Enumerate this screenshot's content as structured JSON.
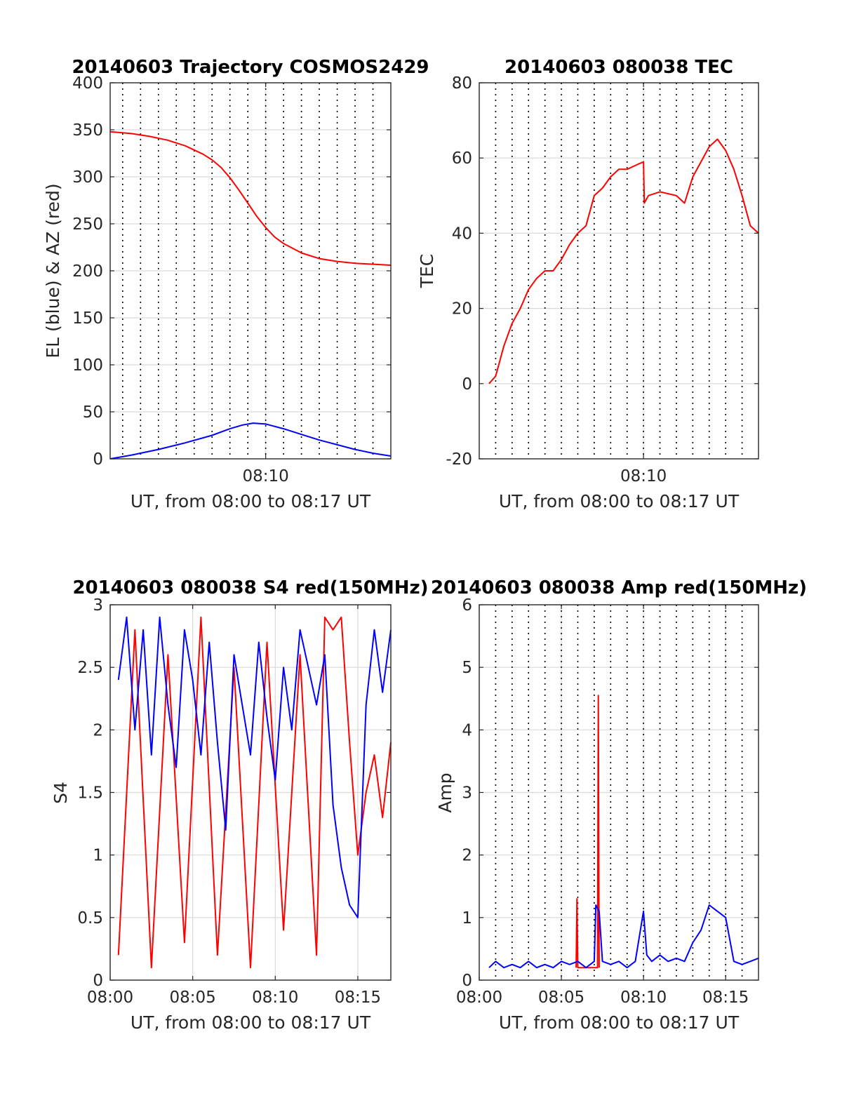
{
  "colors": {
    "el": "#0000ff",
    "az": "#ff0000",
    "tec": "#ff0000",
    "s4_red": "#ff0000",
    "s4_blue": "#0000ff",
    "amp_red": "#ff0000",
    "amp_blue": "#0000ff",
    "grid": "#d9d9d9",
    "vline": "#000000"
  },
  "chart_data": [
    {
      "id": "trajectory",
      "type": "line",
      "title": "20140603 Trajectory COSMOS2429",
      "xlabel": "UT, from 08:00 to 08:17 UT",
      "ylabel": "EL (blue) & AZ (red)",
      "xlim": [
        1.3,
        17.0
      ],
      "ylim": [
        0,
        400
      ],
      "yticks": [
        0,
        50,
        100,
        150,
        200,
        250,
        300,
        350,
        400
      ],
      "ytick_labels": [
        "0",
        "50",
        "100",
        "150",
        "200",
        "250",
        "300",
        "350",
        "400"
      ],
      "xticks": [
        10
      ],
      "xtick_labels": [
        "08:10"
      ],
      "vlines_minutes": [
        2,
        3,
        4,
        5,
        6,
        7,
        8,
        9,
        10,
        11,
        12,
        13,
        14,
        15,
        16
      ],
      "series": [
        {
          "color": "az",
          "x": [
            1.3,
            2.5,
            3.5,
            4.5,
            5.5,
            6.5,
            7.0,
            7.5,
            8.0,
            8.5,
            9.0,
            9.5,
            10.0,
            10.5,
            11.0,
            11.5,
            12.0,
            13.0,
            14.0,
            15.0,
            16.0,
            17.0
          ],
          "y": [
            348,
            346,
            343,
            339,
            333,
            324,
            318,
            310,
            299,
            286,
            272,
            258,
            246,
            236,
            229,
            224,
            219,
            213,
            210,
            208,
            207,
            206
          ]
        },
        {
          "color": "el",
          "x": [
            1.3,
            2.5,
            4.0,
            5.5,
            7.0,
            8.0,
            8.7,
            9.3,
            10.0,
            11.0,
            12.0,
            13.0,
            14.0,
            15.0,
            16.0,
            17.0
          ],
          "y": [
            0,
            4,
            10,
            17,
            25,
            32,
            36,
            38,
            37,
            32,
            26,
            20,
            15,
            10,
            6,
            3
          ]
        }
      ]
    },
    {
      "id": "tec",
      "type": "line",
      "title": "20140603 080038 TEC",
      "xlabel": "UT, from 08:00 to 08:17 UT",
      "ylabel": "TEC",
      "xlim": [
        0.0,
        17.0
      ],
      "ylim": [
        -20,
        80
      ],
      "yticks": [
        -20,
        0,
        20,
        40,
        60,
        80
      ],
      "ytick_labels": [
        "-20",
        "0",
        "20",
        "40",
        "60",
        "80"
      ],
      "xticks": [
        10
      ],
      "xtick_labels": [
        "08:10"
      ],
      "vlines_minutes": [
        1,
        2,
        3,
        4,
        5,
        6,
        7,
        8,
        9,
        10,
        11,
        12,
        13,
        14,
        15,
        16
      ],
      "series": [
        {
          "color": "tec",
          "x": [
            0.6,
            1.0,
            1.5,
            2.0,
            2.5,
            3.0,
            3.5,
            4.0,
            4.5,
            5.0,
            5.5,
            6.0,
            6.5,
            7.0,
            7.5,
            8.0,
            8.5,
            9.0,
            9.5,
            10.0,
            10.05,
            10.3,
            11.0,
            12.0,
            12.5,
            13.0,
            13.5,
            14.0,
            14.5,
            15.0,
            15.5,
            16.0,
            16.5,
            17.0
          ],
          "y": [
            0,
            2,
            10,
            16,
            20,
            25,
            28,
            30,
            30,
            33,
            37,
            40,
            42,
            50,
            52,
            55,
            57,
            57,
            58,
            59,
            48,
            50,
            51,
            50,
            48,
            55,
            59,
            63,
            65,
            62,
            57,
            50,
            42,
            40
          ]
        }
      ]
    },
    {
      "id": "s4",
      "type": "line",
      "title": "20140603 080038 S4 red(150MHz)",
      "xlabel": "UT, from 08:00 to 08:17 UT",
      "ylabel": "S4",
      "xlim": [
        0.0,
        17.0
      ],
      "ylim": [
        0,
        3
      ],
      "yticks": [
        0,
        0.5,
        1,
        1.5,
        2,
        2.5,
        3
      ],
      "ytick_labels": [
        "0",
        "0.5",
        "1",
        "1.5",
        "2",
        "2.5",
        "3"
      ],
      "xticks": [
        0,
        5,
        10,
        15
      ],
      "xtick_labels": [
        "08:00",
        "08:05",
        "08:10",
        "08:15"
      ],
      "vlines_minutes": [],
      "series": [
        {
          "color": "s4_red",
          "x": [
            0.5,
            1.5,
            2.5,
            3.5,
            4.5,
            5.5,
            6.5,
            7.5,
            8.5,
            9.5,
            10.5,
            11.5,
            12.5,
            13.0,
            13.5,
            14.0,
            14.5,
            15.0,
            15.5,
            16.0,
            16.5,
            17.0
          ],
          "y": [
            0.2,
            2.8,
            0.1,
            2.6,
            0.3,
            2.9,
            0.2,
            2.5,
            0.1,
            2.7,
            0.4,
            2.6,
            0.2,
            2.9,
            2.8,
            2.9,
            1.9,
            1.0,
            1.5,
            1.8,
            1.3,
            1.9
          ]
        },
        {
          "color": "s4_blue",
          "x": [
            0.5,
            1.0,
            1.5,
            2.0,
            2.5,
            3.0,
            3.5,
            4.0,
            4.5,
            5.0,
            5.5,
            6.0,
            6.5,
            7.0,
            7.5,
            8.0,
            8.5,
            9.0,
            9.5,
            10.0,
            10.5,
            11.0,
            11.5,
            12.0,
            12.5,
            13.0,
            13.5,
            14.0,
            14.5,
            15.0,
            15.5,
            16.0,
            16.5,
            17.0
          ],
          "y": [
            2.4,
            2.9,
            2.0,
            2.8,
            1.8,
            2.9,
            2.2,
            1.7,
            2.8,
            2.4,
            1.8,
            2.7,
            1.9,
            1.2,
            2.6,
            2.2,
            1.8,
            2.7,
            2.1,
            1.6,
            2.5,
            2.0,
            2.8,
            2.5,
            2.2,
            2.6,
            1.4,
            0.9,
            0.6,
            0.5,
            2.2,
            2.8,
            2.3,
            2.8
          ]
        }
      ]
    },
    {
      "id": "amp",
      "type": "line",
      "title": "20140603 080038 Amp red(150MHz)",
      "xlabel": "UT, from 08:00 to 08:17 UT",
      "ylabel": "Amp",
      "xlim": [
        0.0,
        17.0
      ],
      "ylim": [
        0,
        6
      ],
      "yticks": [
        0,
        1,
        2,
        3,
        4,
        5,
        6
      ],
      "ytick_labels": [
        "0",
        "1",
        "2",
        "3",
        "4",
        "5",
        "6"
      ],
      "xticks": [
        0,
        5,
        10,
        15
      ],
      "xtick_labels": [
        "08:00",
        "08:05",
        "08:10",
        "08:15"
      ],
      "vlines_minutes": [
        1,
        2,
        3,
        4,
        5,
        6,
        7,
        8,
        9,
        10,
        11,
        12,
        13,
        14,
        15,
        16
      ],
      "series": [
        {
          "color": "amp_red",
          "x": [
            5.9,
            5.95,
            6.0,
            7.2,
            7.25,
            7.3
          ],
          "y": [
            0.2,
            1.3,
            0.2,
            0.2,
            4.55,
            0.2
          ]
        },
        {
          "color": "amp_blue",
          "x": [
            0.6,
            1.0,
            1.5,
            2.0,
            2.5,
            3.0,
            3.5,
            4.0,
            4.5,
            5.0,
            5.5,
            6.0,
            6.5,
            7.0,
            7.1,
            7.3,
            7.5,
            8.0,
            8.5,
            9.0,
            9.5,
            10.0,
            10.2,
            10.5,
            11.0,
            11.5,
            12.0,
            12.5,
            13.0,
            13.5,
            14.0,
            14.5,
            15.0,
            15.5,
            16.0,
            16.5,
            17.0
          ],
          "y": [
            0.2,
            0.3,
            0.2,
            0.25,
            0.2,
            0.3,
            0.2,
            0.25,
            0.2,
            0.3,
            0.25,
            0.3,
            0.2,
            0.3,
            1.2,
            1.1,
            0.3,
            0.25,
            0.3,
            0.2,
            0.3,
            1.1,
            0.4,
            0.3,
            0.4,
            0.3,
            0.35,
            0.3,
            0.6,
            0.8,
            1.2,
            1.1,
            1.0,
            0.3,
            0.25,
            0.3,
            0.35
          ]
        }
      ]
    }
  ]
}
